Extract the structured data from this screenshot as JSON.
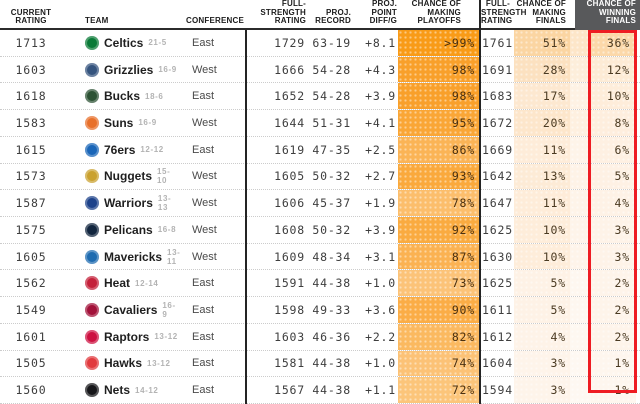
{
  "colors": {
    "accent_red": "#ee1c23",
    "dark_header_bg": "#58595b",
    "divider": "#242424",
    "row_separator": "#cccccc"
  },
  "table": {
    "headers": {
      "current_rating": "CURRENT\nRATING",
      "team": "TEAM",
      "conference": "CONFERENCE",
      "full_strength_rating": "FULL-\nSTRENGTH\nRATING",
      "proj_record": "PROJ.\nRECORD",
      "proj_point_diff": "PROJ.\nPOINT\nDIFF/G",
      "chance_playoffs": "CHANCE OF\nMAKING\nPLAYOFFS",
      "full_strength_rating_2": "FULL-\nSTRENGTH\nRATING",
      "chance_finals": "CHANCE OF\nMAKING\nFINALS",
      "chance_winning": "CHANCE OF\nWINNING\nFINALS"
    },
    "rows": [
      {
        "rating": "1713",
        "team": "Celtics",
        "record": "21-5",
        "logo_icon": "celtics-logo",
        "logo_color": "#0a7a37",
        "conference": "East",
        "fs_rating": "1729",
        "proj_record": "63-19",
        "proj_point_diff": "+8.1",
        "playoffs_pct": ">99%",
        "playoffs_bg": "#f99b17",
        "fs_rating_full": "1761",
        "finals_pct": "51%",
        "finals_bg": "#fbd5a2",
        "gap_bg": "#fde6c9",
        "win_pct": "36%",
        "win_bg": "#fcd8a9"
      },
      {
        "rating": "1603",
        "team": "Grizzlies",
        "record": "16-9",
        "logo_icon": "grizzlies-logo",
        "logo_color": "#35547e",
        "conference": "West",
        "fs_rating": "1666",
        "proj_record": "54-28",
        "proj_point_diff": "+4.3",
        "playoffs_pct": "98%",
        "playoffs_bg": "#f9a02a",
        "fs_rating_full": "1691",
        "finals_pct": "28%",
        "finals_bg": "#fce1c0",
        "gap_bg": "#fdeedb",
        "win_pct": "12%",
        "win_bg": "#fdebd5"
      },
      {
        "rating": "1618",
        "team": "Bucks",
        "record": "18-6",
        "logo_icon": "bucks-logo",
        "logo_color": "#2c5234",
        "conference": "East",
        "fs_rating": "1652",
        "proj_record": "54-28",
        "proj_point_diff": "+3.9",
        "playoffs_pct": "98%",
        "playoffs_bg": "#f9a02a",
        "fs_rating_full": "1683",
        "finals_pct": "17%",
        "finals_bg": "#fde8d0",
        "gap_bg": "#fef2e4",
        "win_pct": "10%",
        "win_bg": "#feedda"
      },
      {
        "rating": "1583",
        "team": "Suns",
        "record": "16-9",
        "logo_icon": "suns-logo",
        "logo_color": "#e8702a",
        "conference": "West",
        "fs_rating": "1644",
        "proj_record": "51-31",
        "proj_point_diff": "+4.1",
        "playoffs_pct": "95%",
        "playoffs_bg": "#faa636",
        "fs_rating_full": "1672",
        "finals_pct": "20%",
        "finals_bg": "#fde6cb",
        "gap_bg": "#fef0e0",
        "win_pct": "8%",
        "win_bg": "#feeede"
      },
      {
        "rating": "1615",
        "team": "76ers",
        "record": "12-12",
        "logo_icon": "76ers-logo",
        "logo_color": "#1a66b8",
        "conference": "East",
        "fs_rating": "1619",
        "proj_record": "47-35",
        "proj_point_diff": "+2.5",
        "playoffs_pct": "86%",
        "playoffs_bg": "#fbb456",
        "fs_rating_full": "1669",
        "finals_pct": "11%",
        "finals_bg": "#feecd9",
        "gap_bg": "#fef4e9",
        "win_pct": "6%",
        "win_bg": "#fef0e2"
      },
      {
        "rating": "1573",
        "team": "Nuggets",
        "record": "15-10",
        "logo_icon": "nuggets-logo",
        "logo_color": "#caa12f",
        "conference": "West",
        "fs_rating": "1605",
        "proj_record": "50-32",
        "proj_point_diff": "+2.7",
        "playoffs_pct": "93%",
        "playoffs_bg": "#faa93c",
        "fs_rating_full": "1642",
        "finals_pct": "13%",
        "finals_bg": "#fdebd6",
        "gap_bg": "#fef3e7",
        "win_pct": "5%",
        "win_bg": "#fef1e4"
      },
      {
        "rating": "1587",
        "team": "Warriors",
        "record": "13-13",
        "logo_icon": "warriors-logo",
        "logo_color": "#1d428a",
        "conference": "West",
        "fs_rating": "1606",
        "proj_record": "45-37",
        "proj_point_diff": "+1.9",
        "playoffs_pct": "78%",
        "playoffs_bg": "#fcbe6c",
        "fs_rating_full": "1647",
        "finals_pct": "11%",
        "finals_bg": "#feecd9",
        "gap_bg": "#fef4e9",
        "win_pct": "4%",
        "win_bg": "#fef2e6"
      },
      {
        "rating": "1575",
        "team": "Pelicans",
        "record": "16-8",
        "logo_icon": "pelicans-logo",
        "logo_color": "#12263f",
        "conference": "West",
        "fs_rating": "1608",
        "proj_record": "50-32",
        "proj_point_diff": "+3.9",
        "playoffs_pct": "92%",
        "playoffs_bg": "#faab40",
        "fs_rating_full": "1625",
        "finals_pct": "10%",
        "finals_bg": "#feedda",
        "gap_bg": "#fef4ea",
        "win_pct": "3%",
        "win_bg": "#fef3e8"
      },
      {
        "rating": "1605",
        "team": "Mavericks",
        "record": "13-11",
        "logo_icon": "mavericks-logo",
        "logo_color": "#1e6bb0",
        "conference": "West",
        "fs_rating": "1609",
        "proj_record": "48-34",
        "proj_point_diff": "+3.1",
        "playoffs_pct": "87%",
        "playoffs_bg": "#fbb252",
        "fs_rating_full": "1630",
        "finals_pct": "10%",
        "finals_bg": "#feedda",
        "gap_bg": "#fef4ea",
        "win_pct": "3%",
        "win_bg": "#fef3e8"
      },
      {
        "rating": "1562",
        "team": "Heat",
        "record": "12-14",
        "logo_icon": "heat-logo",
        "logo_color": "#c4213a",
        "conference": "East",
        "fs_rating": "1591",
        "proj_record": "44-38",
        "proj_point_diff": "+1.0",
        "playoffs_pct": "73%",
        "playoffs_bg": "#fcc378",
        "fs_rating_full": "1625",
        "finals_pct": "5%",
        "finals_bg": "#fef2e6",
        "gap_bg": "#fef7f0",
        "win_pct": "2%",
        "win_bg": "#fef4ea"
      },
      {
        "rating": "1549",
        "team": "Cavaliers",
        "record": "16-9",
        "logo_icon": "cavaliers-logo",
        "logo_color": "#a3123a",
        "conference": "East",
        "fs_rating": "1598",
        "proj_record": "49-33",
        "proj_point_diff": "+3.6",
        "playoffs_pct": "90%",
        "playoffs_bg": "#fbad46",
        "fs_rating_full": "1611",
        "finals_pct": "5%",
        "finals_bg": "#fef2e6",
        "gap_bg": "#fef7f0",
        "win_pct": "2%",
        "win_bg": "#fef4ea"
      },
      {
        "rating": "1601",
        "team": "Raptors",
        "record": "13-12",
        "logo_icon": "raptors-logo",
        "logo_color": "#cd1141",
        "conference": "East",
        "fs_rating": "1603",
        "proj_record": "46-36",
        "proj_point_diff": "+2.2",
        "playoffs_pct": "82%",
        "playoffs_bg": "#fbb960",
        "fs_rating_full": "1612",
        "finals_pct": "4%",
        "finals_bg": "#fef3e8",
        "gap_bg": "#fef8f1",
        "win_pct": "2%",
        "win_bg": "#fef4ea"
      },
      {
        "rating": "1505",
        "team": "Hawks",
        "record": "13-12",
        "logo_icon": "hawks-logo",
        "logo_color": "#e13a3e",
        "conference": "East",
        "fs_rating": "1581",
        "proj_record": "44-38",
        "proj_point_diff": "+1.0",
        "playoffs_pct": "74%",
        "playoffs_bg": "#fcc276",
        "fs_rating_full": "1604",
        "finals_pct": "3%",
        "finals_bg": "#fef4ea",
        "gap_bg": "#fef8f2",
        "win_pct": "1%",
        "win_bg": "#fef6ee"
      },
      {
        "rating": "1560",
        "team": "Nets",
        "record": "14-12",
        "logo_icon": "nets-logo",
        "logo_color": "#17171a",
        "conference": "East",
        "fs_rating": "1567",
        "proj_record": "44-38",
        "proj_point_diff": "+1.1",
        "playoffs_pct": "72%",
        "playoffs_bg": "#fcc57a",
        "fs_rating_full": "1594",
        "finals_pct": "3%",
        "finals_bg": "#fef4ea",
        "gap_bg": "#fef8f2",
        "win_pct": "1%",
        "win_bg": "#fef6ee"
      }
    ]
  }
}
